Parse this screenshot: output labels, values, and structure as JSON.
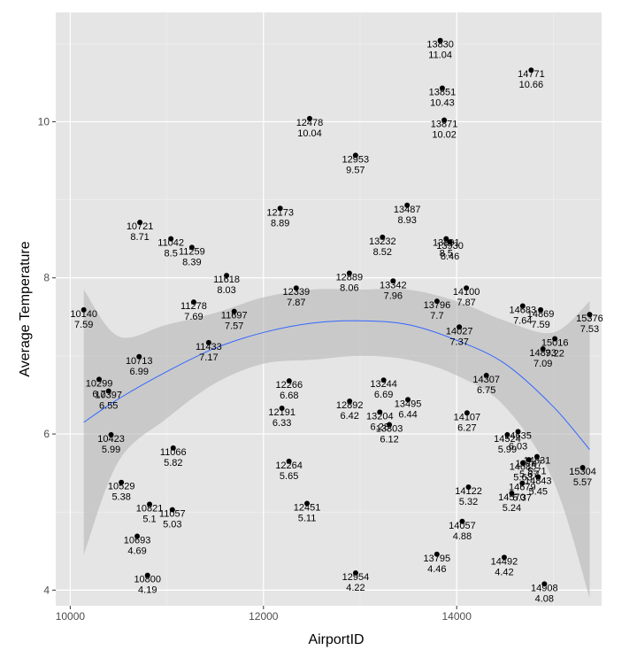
{
  "chart_data": {
    "type": "scatter",
    "xlabel": "AirportID",
    "ylabel": "Average Temperature",
    "xlim": [
      9850,
      15500
    ],
    "ylim": [
      3.8,
      11.4
    ],
    "x_ticks": [
      10000,
      12000,
      14000
    ],
    "y_ticks": [
      4,
      6,
      8,
      10
    ],
    "grid": true,
    "colors": {
      "panel": "#e5e5e5",
      "grid_major": "#ffffff",
      "grid_minor": "#f2f2f2",
      "points": "#000000",
      "ribbon": "#b3b3b3",
      "smooth_line": "#3366ff"
    },
    "smooth": {
      "method": "loess",
      "x": [
        10140,
        10500,
        11000,
        11500,
        12000,
        12500,
        13000,
        13500,
        14000,
        14500,
        15000,
        15376
      ],
      "fit": [
        6.15,
        6.45,
        6.8,
        7.1,
        7.3,
        7.42,
        7.45,
        7.4,
        7.2,
        6.9,
        6.35,
        5.8
      ],
      "lower": [
        4.45,
        5.65,
        6.2,
        6.65,
        6.9,
        6.95,
        7.0,
        6.95,
        6.75,
        6.35,
        5.4,
        3.9
      ],
      "upper": [
        7.85,
        7.25,
        7.4,
        7.55,
        7.75,
        7.85,
        7.85,
        7.85,
        7.7,
        7.45,
        7.3,
        7.7
      ]
    },
    "points": [
      {
        "x": 10140,
        "y": 7.59
      },
      {
        "x": 10299,
        "y": 6.7
      },
      {
        "x": 10397,
        "y": 6.55
      },
      {
        "x": 10423,
        "y": 5.99
      },
      {
        "x": 10529,
        "y": 5.38
      },
      {
        "x": 10693,
        "y": 4.69
      },
      {
        "x": 10713,
        "y": 6.99
      },
      {
        "x": 10721,
        "y": 8.71
      },
      {
        "x": 10800,
        "y": 4.19
      },
      {
        "x": 10821,
        "y": 5.1
      },
      {
        "x": 11042,
        "y": 8.5
      },
      {
        "x": 11057,
        "y": 5.03
      },
      {
        "x": 11066,
        "y": 5.82
      },
      {
        "x": 11259,
        "y": 8.39
      },
      {
        "x": 11278,
        "y": 7.69
      },
      {
        "x": 11433,
        "y": 7.17
      },
      {
        "x": 11618,
        "y": 8.03
      },
      {
        "x": 11697,
        "y": 7.57
      },
      {
        "x": 12173,
        "y": 8.89
      },
      {
        "x": 12191,
        "y": 6.33
      },
      {
        "x": 12264,
        "y": 5.65
      },
      {
        "x": 12266,
        "y": 6.68
      },
      {
        "x": 12339,
        "y": 7.87
      },
      {
        "x": 12451,
        "y": 5.11
      },
      {
        "x": 12478,
        "y": 10.04
      },
      {
        "x": 12889,
        "y": 8.06
      },
      {
        "x": 12892,
        "y": 6.42
      },
      {
        "x": 12953,
        "y": 9.57
      },
      {
        "x": 12954,
        "y": 4.22
      },
      {
        "x": 13204,
        "y": 6.28
      },
      {
        "x": 13232,
        "y": 8.52
      },
      {
        "x": 13244,
        "y": 6.69
      },
      {
        "x": 13303,
        "y": 6.12
      },
      {
        "x": 13342,
        "y": 7.96
      },
      {
        "x": 13487,
        "y": 8.93
      },
      {
        "x": 13495,
        "y": 6.44
      },
      {
        "x": 13795,
        "y": 4.46
      },
      {
        "x": 13796,
        "y": 7.7
      },
      {
        "x": 13830,
        "y": 11.04
      },
      {
        "x": 13851,
        "y": 10.43
      },
      {
        "x": 13871,
        "y": 10.02
      },
      {
        "x": 13891,
        "y": 8.5
      },
      {
        "x": 13930,
        "y": 8.46
      },
      {
        "x": 14027,
        "y": 7.37
      },
      {
        "x": 14057,
        "y": 4.88
      },
      {
        "x": 14100,
        "y": 7.87
      },
      {
        "x": 14107,
        "y": 6.27
      },
      {
        "x": 14122,
        "y": 5.32
      },
      {
        "x": 14307,
        "y": 6.75
      },
      {
        "x": 14492,
        "y": 4.42
      },
      {
        "x": 14524,
        "y": 5.99
      },
      {
        "x": 14570,
        "y": 5.24
      },
      {
        "x": 14635,
        "y": 6.03
      },
      {
        "x": 14679,
        "y": 5.37
      },
      {
        "x": 14683,
        "y": 7.64
      },
      {
        "x": 14685,
        "y": 5.63
      },
      {
        "x": 14747,
        "y": 5.67
      },
      {
        "x": 14771,
        "y": 10.66
      },
      {
        "x": 14831,
        "y": 5.71
      },
      {
        "x": 14843,
        "y": 5.45
      },
      {
        "x": 14869,
        "y": 7.59
      },
      {
        "x": 14893,
        "y": 7.09
      },
      {
        "x": 14908,
        "y": 4.08
      },
      {
        "x": 15016,
        "y": 7.22
      },
      {
        "x": 15304,
        "y": 5.57
      },
      {
        "x": 15376,
        "y": 7.53
      }
    ]
  }
}
